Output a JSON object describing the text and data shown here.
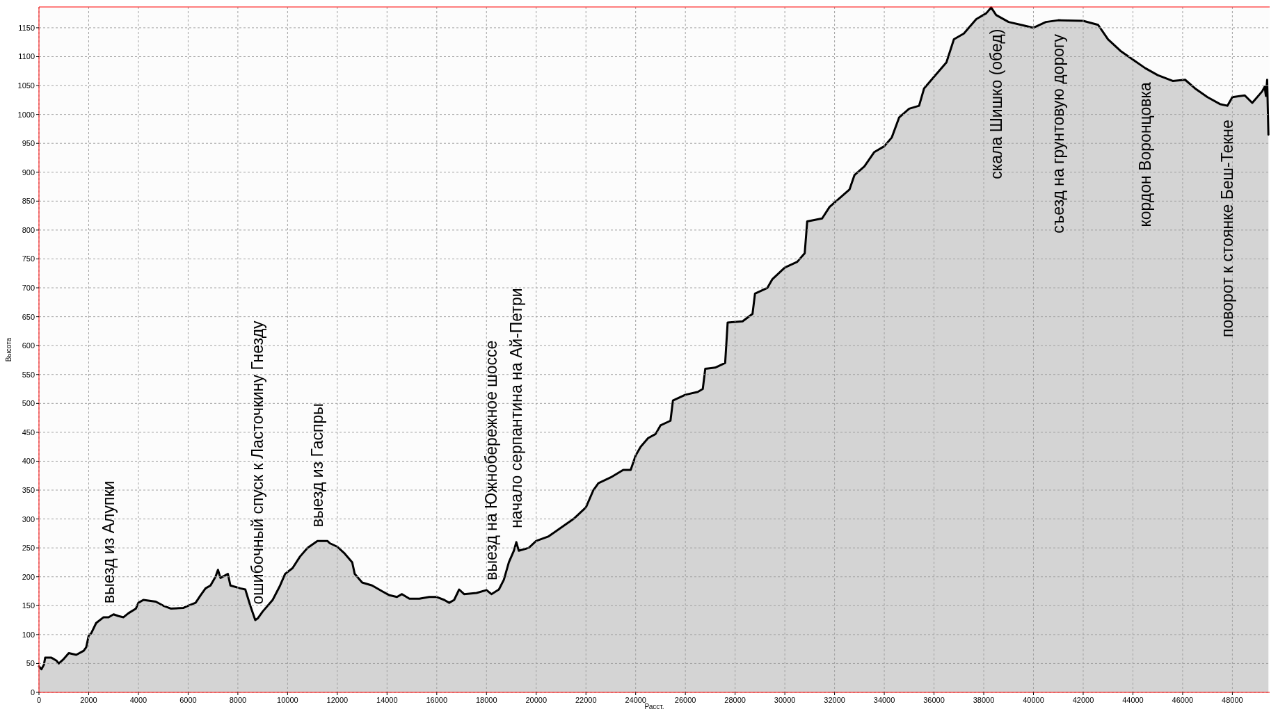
{
  "chart_data": {
    "type": "area",
    "xlabel": "Расст.",
    "ylabel": "Высота",
    "xlim": [
      0,
      49500
    ],
    "ylim": [
      0,
      1186
    ],
    "xticks": [
      0,
      2000,
      4000,
      6000,
      8000,
      10000,
      12000,
      14000,
      16000,
      18000,
      20000,
      22000,
      24000,
      26000,
      28000,
      30000,
      32000,
      34000,
      36000,
      38000,
      40000,
      42000,
      44000,
      46000,
      48000
    ],
    "yticks": [
      0,
      50,
      100,
      150,
      200,
      250,
      300,
      350,
      400,
      450,
      500,
      550,
      600,
      650,
      700,
      750,
      800,
      850,
      900,
      950,
      1000,
      1050,
      1100,
      1150
    ],
    "grid": true,
    "x": [
      0,
      100,
      200,
      250,
      500,
      700,
      800,
      1000,
      1200,
      1500,
      1800,
      1900,
      2000,
      2100,
      2300,
      2600,
      2800,
      3000,
      3200,
      3400,
      3600,
      3900,
      4000,
      4200,
      4700,
      5000,
      5300,
      5800,
      6000,
      6300,
      6500,
      6700,
      6900,
      7100,
      7200,
      7300,
      7600,
      7700,
      8100,
      8300,
      8500,
      8700,
      8800,
      9000,
      9400,
      9700,
      9900,
      10200,
      10500,
      10800,
      11200,
      11600,
      11700,
      12000,
      12300,
      12600,
      12700,
      13000,
      13400,
      13800,
      14100,
      14400,
      14600,
      14900,
      15300,
      15700,
      16000,
      16300,
      16500,
      16700,
      16900,
      17100,
      17600,
      18000,
      18200,
      18500,
      18700,
      18900,
      19100,
      19200,
      19300,
      19700,
      20000,
      20500,
      21000,
      21500,
      22000,
      22300,
      22500,
      23000,
      23500,
      23800,
      24000,
      24200,
      24500,
      24800,
      25000,
      25400,
      25500,
      26000,
      26500,
      26700,
      26800,
      27200,
      27600,
      27700,
      28300,
      28700,
      28800,
      29300,
      29500,
      30000,
      30500,
      30800,
      30900,
      31500,
      31800,
      32200,
      32600,
      32800,
      33200,
      33600,
      34000,
      34300,
      34600,
      35000,
      35400,
      35600,
      36000,
      36500,
      36800,
      37200,
      37700,
      38100,
      38300,
      38500,
      39000,
      39500,
      40000,
      40500,
      41000,
      42000,
      42600,
      43000,
      43500,
      44000,
      44500,
      45000,
      45600,
      46100,
      46500,
      47000,
      47500,
      47800,
      48000,
      48500,
      48800,
      49200,
      49300,
      49350,
      49400,
      49450
    ],
    "series": [
      {
        "color": "#d4d4d4",
        "values": [
          45,
          40,
          48,
          60,
          60,
          55,
          50,
          58,
          68,
          65,
          72,
          78,
          98,
          102,
          120,
          130,
          130,
          135,
          132,
          130,
          137,
          145,
          155,
          160,
          157,
          150,
          145,
          146,
          150,
          155,
          168,
          180,
          185,
          200,
          212,
          198,
          205,
          185,
          180,
          178,
          150,
          125,
          128,
          140,
          160,
          185,
          205,
          215,
          235,
          250,
          262,
          262,
          258,
          252,
          240,
          225,
          205,
          190,
          185,
          175,
          168,
          165,
          170,
          162,
          162,
          165,
          165,
          160,
          155,
          160,
          178,
          170,
          172,
          177,
          170,
          178,
          195,
          225,
          245,
          260,
          245,
          250,
          262,
          270,
          285,
          300,
          320,
          350,
          362,
          372,
          385,
          385,
          410,
          425,
          440,
          447,
          462,
          470,
          505,
          515,
          520,
          525,
          560,
          562,
          570,
          640,
          642,
          655,
          690,
          700,
          715,
          735,
          745,
          760,
          815,
          820,
          840,
          855,
          870,
          895,
          910,
          935,
          945,
          960,
          995,
          1010,
          1015,
          1045,
          1065,
          1090,
          1130,
          1140,
          1165,
          1175,
          1185,
          1172,
          1160,
          1155,
          1150,
          1160,
          1163,
          1162,
          1155,
          1130,
          1110,
          1095,
          1080,
          1068,
          1058,
          1060,
          1045,
          1030,
          1018,
          1015,
          1030,
          1033,
          1020,
          1040,
          1048,
          1032,
          1060,
          965
        ]
      }
    ],
    "annotations": [
      {
        "text": "выезд из Алупки",
        "x": 2800,
        "y": 130
      },
      {
        "text": "ошибочный спуск к Ласточкину Гнезду",
        "x": 8800,
        "y": 128
      },
      {
        "text": "выезд из Гаспры",
        "x": 11200,
        "y": 262
      },
      {
        "text": "выезд на Южнобережное шоссе",
        "x": 18200,
        "y": 170
      },
      {
        "text": "начало серпантина на Ай-Петри",
        "x": 19200,
        "y": 260
      },
      {
        "text": "скала Шишко (обед)",
        "x": 38500,
        "y": 1172
      },
      {
        "text": "съезд на грунтовую дорогу",
        "x": 41000,
        "y": 1163
      },
      {
        "text": "кордон Воронцовка",
        "x": 44500,
        "y": 1080
      },
      {
        "text": "поворот к стоянке Беш-Текне",
        "x": 47800,
        "y": 1015
      }
    ]
  }
}
